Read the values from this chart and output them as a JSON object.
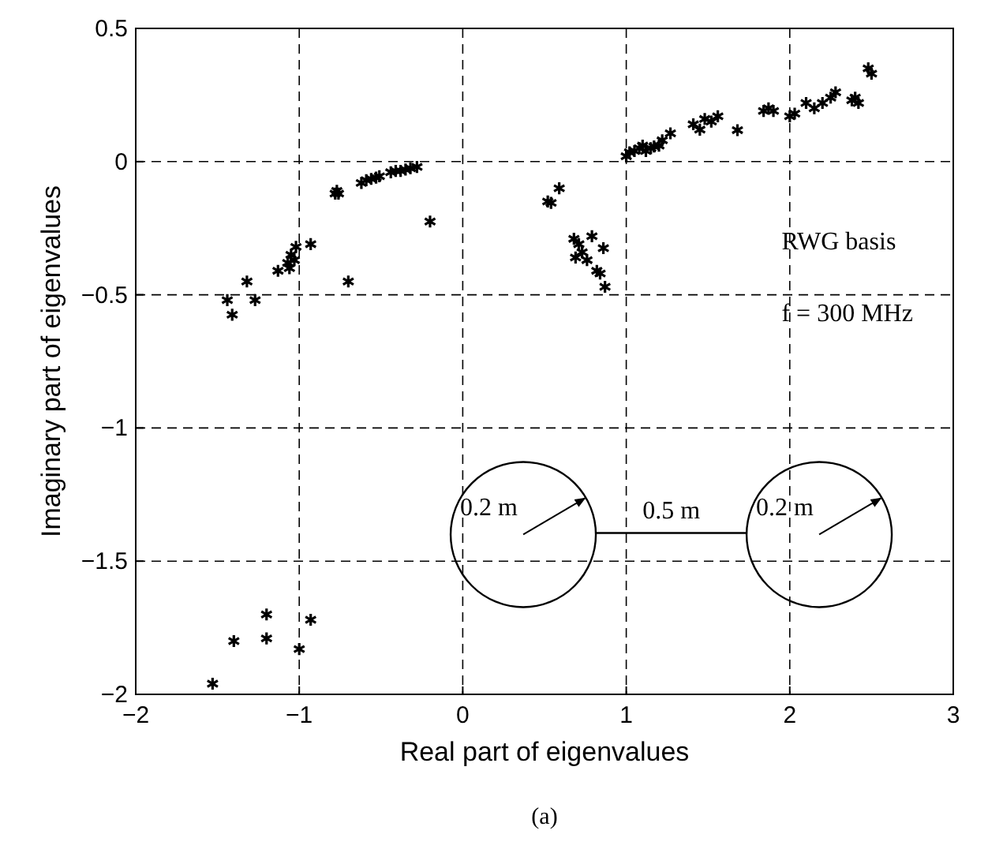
{
  "chart_data": {
    "type": "scatter",
    "xlabel": "Real part of eigenvalues",
    "ylabel": "Imaginary part of eigenvalues",
    "xlim": [
      -2,
      3
    ],
    "xticks": [
      -2,
      -1,
      0,
      1,
      2,
      3
    ],
    "ylim": [
      -2,
      0.5
    ],
    "yticks": [
      -2,
      -1.5,
      -1,
      -0.5,
      0,
      0.5
    ],
    "grid": true,
    "marker": "cross",
    "annotations": [
      "RWG basis",
      "f = 300 MHz",
      "0.2 m",
      "0.5 m",
      "0.2 m",
      "(a)"
    ],
    "series": [
      {
        "color": "#000000",
        "x": [
          -1.44,
          -1.41,
          -1.32,
          -1.27,
          -1.13,
          -1.07,
          -1.05,
          -1.03,
          -1.02,
          -1.06,
          -0.93,
          -0.78,
          -0.77,
          -0.76,
          -0.7,
          -0.62,
          -0.59,
          -0.56,
          -0.53,
          -0.51,
          -0.44,
          -0.41,
          -0.38,
          -0.35,
          -0.32,
          -0.28,
          -0.2,
          0.52,
          0.59,
          0.54,
          0.68,
          0.79,
          0.73,
          0.69,
          0.76,
          0.86,
          0.82,
          0.84,
          0.87,
          0.71,
          1.0,
          1.02,
          1.05,
          1.08,
          1.1,
          1.12,
          1.15,
          1.17,
          1.2,
          1.22,
          1.27,
          1.41,
          1.45,
          1.48,
          1.52,
          1.56,
          1.68,
          1.84,
          1.87,
          1.9,
          2.0,
          2.03,
          2.1,
          2.15,
          2.2,
          2.25,
          2.28,
          2.38,
          2.4,
          2.42,
          2.48,
          2.5,
          -1.53,
          -1.4,
          -1.2,
          -1.2,
          -1.0,
          -0.93
        ],
        "values": [
          -0.52,
          -0.575,
          -0.45,
          -0.52,
          -0.41,
          -0.38,
          -0.35,
          -0.37,
          -0.32,
          -0.4,
          -0.31,
          -0.12,
          -0.11,
          -0.12,
          -0.45,
          -0.08,
          -0.07,
          -0.065,
          -0.06,
          -0.055,
          -0.04,
          -0.035,
          -0.035,
          -0.03,
          -0.025,
          -0.02,
          -0.225,
          -0.15,
          -0.1,
          -0.155,
          -0.29,
          -0.28,
          -0.34,
          -0.36,
          -0.37,
          -0.325,
          -0.41,
          -0.42,
          -0.47,
          -0.31,
          0.02,
          0.035,
          0.04,
          0.05,
          0.06,
          0.04,
          0.05,
          0.057,
          0.06,
          0.08,
          0.106,
          0.14,
          0.12,
          0.16,
          0.15,
          0.17,
          0.118,
          0.19,
          0.2,
          0.19,
          0.17,
          0.18,
          0.22,
          0.2,
          0.22,
          0.24,
          0.26,
          0.23,
          0.24,
          0.22,
          0.35,
          0.33,
          -1.96,
          -1.8,
          -1.7,
          -1.79,
          -1.83,
          -1.72
        ]
      }
    ]
  }
}
